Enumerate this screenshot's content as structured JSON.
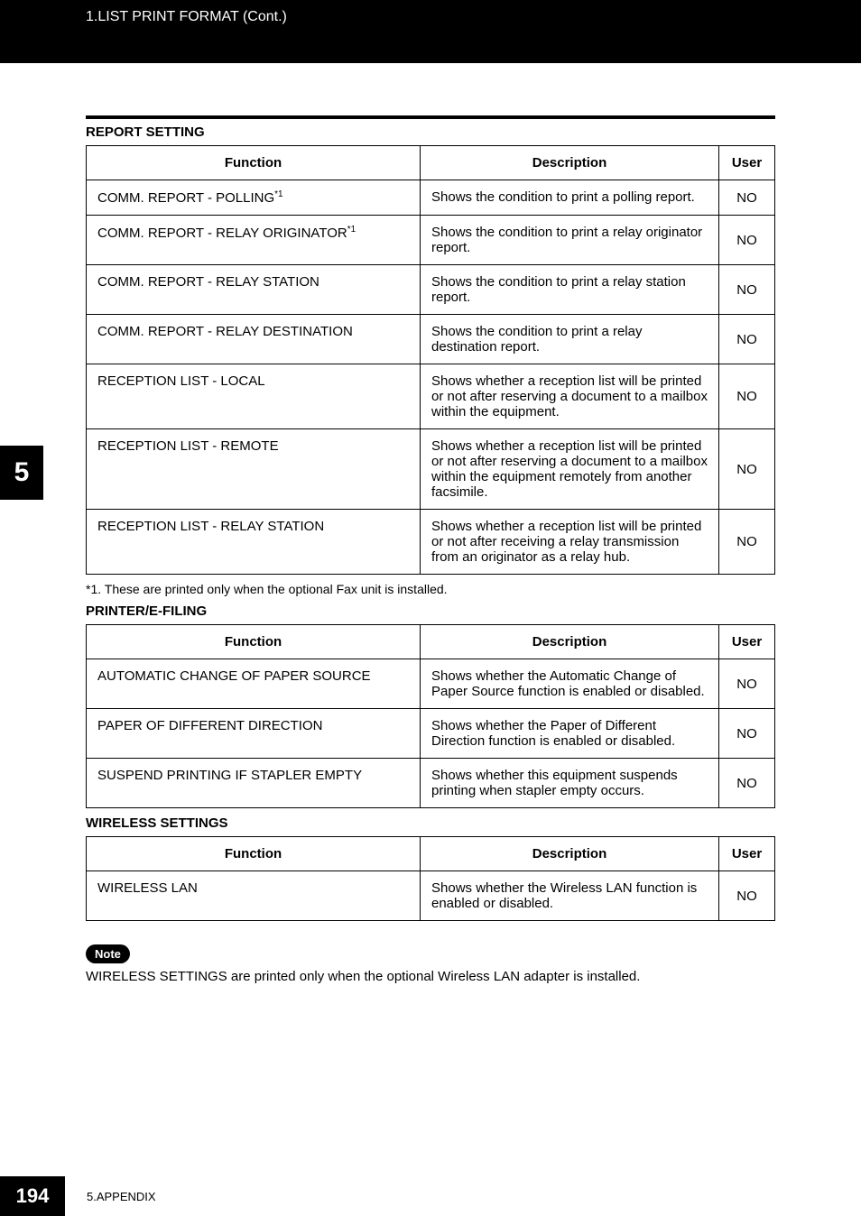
{
  "header": {
    "breadcrumb": "1.LIST PRINT FORMAT (Cont.)"
  },
  "chapter_tab": "5",
  "sections": {
    "report": {
      "title": "REPORT SETTING",
      "columns": {
        "function": "Function",
        "description": "Description",
        "user": "User"
      },
      "rows": [
        {
          "function": "COMM. REPORT - POLLING",
          "sup": "*1",
          "description": "Shows the condition to print a polling report.",
          "user": "NO"
        },
        {
          "function": "COMM. REPORT - RELAY ORIGINATOR",
          "sup": "*1",
          "description": "Shows the condition to print a relay originator report.",
          "user": "NO"
        },
        {
          "function": "COMM. REPORT - RELAY STATION",
          "sup": "",
          "description": "Shows the condition to print a relay station report.",
          "user": "NO"
        },
        {
          "function": "COMM. REPORT - RELAY DESTINATION",
          "sup": "",
          "description": "Shows the condition to print a relay destination report.",
          "user": "NO"
        },
        {
          "function": "RECEPTION LIST - LOCAL",
          "sup": "",
          "description": "Shows whether a reception list will be printed or not after reserving a document to a mailbox within the equipment.",
          "user": "NO"
        },
        {
          "function": "RECEPTION LIST - REMOTE",
          "sup": "",
          "description": "Shows whether a reception list will be printed or not after reserving a document to a mailbox within the equipment remotely from another facsimile.",
          "user": "NO"
        },
        {
          "function": "RECEPTION LIST - RELAY STATION",
          "sup": "",
          "description": "Shows whether a reception list will be printed or not after receiving a relay transmission from an originator as a relay hub.",
          "user": "NO"
        }
      ],
      "footnote": "*1.  These are printed only when the optional Fax unit is installed."
    },
    "printer": {
      "title": "PRINTER/E-FILING",
      "columns": {
        "function": "Function",
        "description": "Description",
        "user": "User"
      },
      "rows": [
        {
          "function": "AUTOMATIC CHANGE OF PAPER SOURCE",
          "description": "Shows whether the Automatic Change of Paper Source function is enabled or disabled.",
          "user": "NO"
        },
        {
          "function": "PAPER OF DIFFERENT DIRECTION",
          "description": "Shows whether the Paper of Different Direction function is enabled or disabled.",
          "user": "NO"
        },
        {
          "function": "SUSPEND PRINTING IF STAPLER EMPTY",
          "description": "Shows whether this equipment suspends printing when stapler empty occurs.",
          "user": "NO"
        }
      ]
    },
    "wireless": {
      "title": "WIRELESS SETTINGS",
      "columns": {
        "function": "Function",
        "description": "Description",
        "user": "User"
      },
      "rows": [
        {
          "function": "WIRELESS LAN",
          "description": "Shows whether the Wireless LAN function is enabled or disabled.",
          "user": "NO"
        }
      ]
    }
  },
  "note": {
    "label": "Note",
    "text": "WIRELESS SETTINGS are printed only when the optional Wireless LAN adapter is installed."
  },
  "footer": {
    "page": "194",
    "text": "5.APPENDIX"
  }
}
